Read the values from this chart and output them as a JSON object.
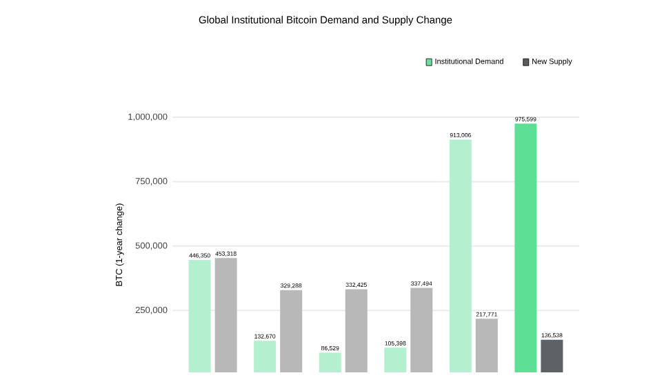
{
  "chart_data": {
    "type": "bar",
    "title": "Global Institutional Bitcoin Demand and Supply Change",
    "ylabel": "BTC (1-year change)",
    "categories": [
      null,
      null,
      null,
      null,
      null,
      null
    ],
    "series": [
      {
        "name": "Institutional Demand",
        "color": "#6ddc9c",
        "colors": [
          "#b3f0cf",
          "#b3f0cf",
          "#b3f0cf",
          "#b3f0cf",
          "#b3f0cf",
          "#5ddf96"
        ],
        "values": [
          446350,
          132670,
          86529,
          105398,
          913006,
          975599
        ],
        "value_labels": [
          "446,350",
          "132,670",
          "86,529",
          "105,398",
          "913,006",
          "975,599"
        ]
      },
      {
        "name": "New Supply",
        "color": "#5a5a5a",
        "colors": [
          "#b8b8b8",
          "#b8b8b8",
          "#b8b8b8",
          "#b8b8b8",
          "#b8b8b8",
          "#5f6264"
        ],
        "values": [
          453318,
          329288,
          332425,
          337494,
          217771,
          136538
        ],
        "value_labels": [
          "453,318",
          "329,288",
          "332,425",
          "337,494",
          "217,771",
          "136,538"
        ]
      }
    ],
    "ylim": [
      10000,
      1000000
    ],
    "yticks": [
      {
        "value": 250000,
        "label": "250,000"
      },
      {
        "value": 500000,
        "label": "500,000"
      },
      {
        "value": 750000,
        "label": "750,000"
      },
      {
        "value": 1000000,
        "label": "1,000,000"
      }
    ],
    "grid": "y",
    "legend": "top right",
    "tick_labels": "y"
  }
}
